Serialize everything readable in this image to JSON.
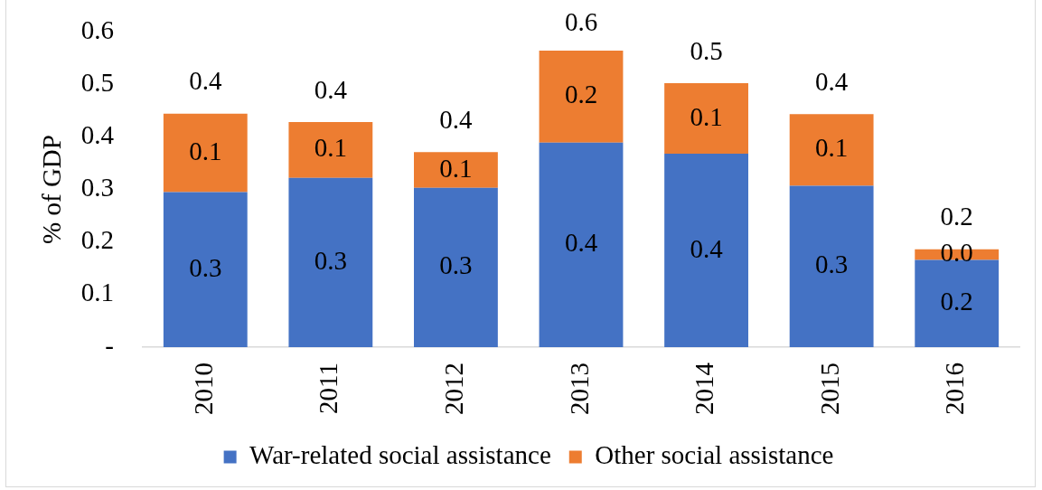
{
  "chart_data": {
    "type": "bar",
    "stacked": true,
    "ylabel": "% of GDP",
    "categories": [
      "2010",
      "2011",
      "2012",
      "2013",
      "2014",
      "2015",
      "2016"
    ],
    "series": [
      {
        "name": "War-related social assistance",
        "color": "#4472c4",
        "values": [
          0.295,
          0.322,
          0.303,
          0.389,
          0.368,
          0.307,
          0.166
        ],
        "value_labels": [
          "0.3",
          "0.3",
          "0.3",
          "0.4",
          "0.4",
          "0.3",
          "0.2"
        ]
      },
      {
        "name": "Other social assistance",
        "color": "#ed7d31",
        "values": [
          0.149,
          0.106,
          0.068,
          0.175,
          0.134,
          0.136,
          0.02
        ],
        "value_labels": [
          "0.1",
          "0.1",
          "0.1",
          "0.2",
          "0.1",
          "0.1",
          "0.0"
        ]
      }
    ],
    "totals": [
      "0.4",
      "0.4",
      "0.4",
      "0.6",
      "0.5",
      "0.4",
      "0.2"
    ],
    "ylim": [
      0,
      0.6
    ],
    "yticks": [
      {
        "value": 0,
        "label": "-"
      },
      0.1,
      0.2,
      0.3,
      0.4,
      0.5,
      0.6
    ],
    "grid": false,
    "legend": "bottom"
  }
}
